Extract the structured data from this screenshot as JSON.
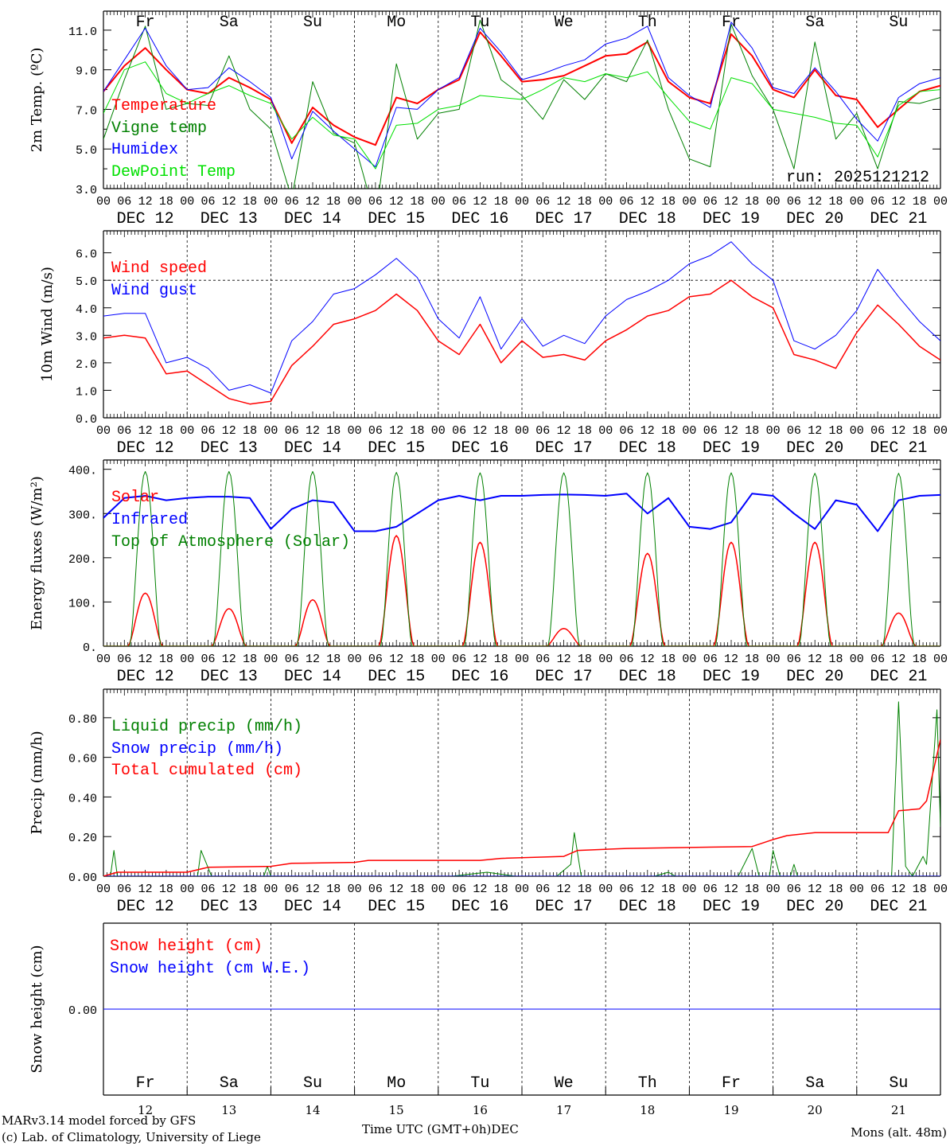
{
  "footer": {
    "model_line": "MARv3.14 model forced by GFS",
    "copyright_line": "(c) Lab. of Climatology, University of Liege",
    "time_axis_label": "Time UTC (GMT+0h)DEC",
    "station": "Mons (alt. 48m)"
  },
  "days": {
    "weekdays": [
      "Fr",
      "Sa",
      "Su",
      "Mo",
      "Tu",
      "We",
      "Th",
      "Fr",
      "Sa",
      "Su"
    ],
    "weekend": [
      false,
      true,
      true,
      false,
      false,
      false,
      false,
      false,
      true,
      true
    ],
    "dates": [
      "DEC 12",
      "DEC 13",
      "DEC 14",
      "DEC 15",
      "DEC 16",
      "DEC 17",
      "DEC 18",
      "DEC 19",
      "DEC 20",
      "DEC 21"
    ],
    "day_numbers": [
      "12",
      "13",
      "14",
      "15",
      "16",
      "17",
      "18",
      "19",
      "20",
      "21"
    ],
    "hour_labels": [
      "00",
      "06",
      "12",
      "18"
    ]
  },
  "colors": {
    "red": "#ff0000",
    "blue": "#0000ff",
    "green": "#008000",
    "lime": "#00e000",
    "black": "#000000"
  },
  "chart_data": [
    {
      "type": "line",
      "ylabel": "2m Temp. (ºC)",
      "yticks": [
        "3.0",
        "5.0",
        "7.0",
        "9.0",
        "11.0"
      ],
      "ylim": [
        3.0,
        11.96
      ],
      "x_hours_step": 6,
      "run_label": "run: 2025121212",
      "series": [
        {
          "name": "Temperature",
          "color": "#ff0000",
          "width": 2,
          "values": [
            7.9,
            9.2,
            10.1,
            9.0,
            8.0,
            7.8,
            8.6,
            8.1,
            7.5,
            5.3,
            7.1,
            6.2,
            5.6,
            5.2,
            7.6,
            7.3,
            8.0,
            8.5,
            10.9,
            9.7,
            8.4,
            8.5,
            8.7,
            9.2,
            9.7,
            9.8,
            10.4,
            8.4,
            7.6,
            7.3,
            10.8,
            9.7,
            8.0,
            7.6,
            9.0,
            7.7,
            7.5,
            6.1,
            7.0,
            7.9,
            8.2
          ]
        },
        {
          "name": "Vigne temp",
          "color": "#008000",
          "width": 1,
          "values": [
            5.5,
            8.5,
            11.2,
            7.0,
            7.3,
            7.2,
            9.7,
            7.0,
            6.0,
            2.5,
            8.4,
            5.8,
            5.3,
            1.5,
            9.3,
            5.5,
            6.8,
            7.0,
            11.5,
            8.5,
            7.7,
            6.5,
            8.5,
            7.5,
            8.8,
            8.4,
            10.5,
            7.0,
            4.5,
            4.1,
            11.3,
            8.7,
            7.0,
            4.0,
            10.4,
            5.5,
            6.8,
            4.0,
            7.4,
            7.3,
            7.6
          ]
        },
        {
          "name": "Humidex",
          "color": "#0000ff",
          "width": 1,
          "values": [
            7.9,
            9.5,
            11.1,
            9.2,
            8.0,
            8.1,
            9.1,
            8.4,
            7.6,
            4.5,
            6.9,
            5.9,
            5.0,
            4.1,
            7.1,
            7.0,
            8.0,
            8.6,
            11.1,
            9.9,
            8.5,
            8.8,
            9.2,
            9.5,
            10.3,
            10.6,
            11.2,
            8.6,
            7.7,
            7.1,
            11.4,
            10.1,
            8.1,
            7.8,
            9.1,
            7.9,
            6.5,
            5.4,
            7.6,
            8.3,
            8.6
          ]
        },
        {
          "name": "DewPoint Temp",
          "color": "#00e000",
          "width": 1,
          "values": [
            6.8,
            9.0,
            9.4,
            7.8,
            7.3,
            7.8,
            8.2,
            7.7,
            7.3,
            5.5,
            6.6,
            5.7,
            5.5,
            4.0,
            6.2,
            6.3,
            7.0,
            7.2,
            7.7,
            7.6,
            7.5,
            8.0,
            8.6,
            8.4,
            8.8,
            8.6,
            8.9,
            7.6,
            6.4,
            6.0,
            8.6,
            8.3,
            7.0,
            6.8,
            6.6,
            6.3,
            6.2,
            4.6,
            7.2,
            7.9,
            8.0
          ]
        }
      ]
    },
    {
      "type": "line",
      "ylabel": "10m Wind (m/s)",
      "yticks": [
        "0.0",
        "1.0",
        "2.0",
        "3.0",
        "4.0",
        "5.0",
        "6.0"
      ],
      "ylim": [
        0,
        6.8
      ],
      "reference_line": 5.0,
      "x_hours_step": 6,
      "series": [
        {
          "name": "Wind speed",
          "color": "#ff0000",
          "width": 1.5,
          "values": [
            2.9,
            3.0,
            2.9,
            1.6,
            1.7,
            1.2,
            0.7,
            0.5,
            0.6,
            1.9,
            2.6,
            3.4,
            3.6,
            3.9,
            4.5,
            3.9,
            2.8,
            2.3,
            3.4,
            2.0,
            2.8,
            2.2,
            2.3,
            2.1,
            2.8,
            3.2,
            3.7,
            3.9,
            4.4,
            4.5,
            5.0,
            4.4,
            4.0,
            2.3,
            2.1,
            1.8,
            3.1,
            4.1,
            3.4,
            2.6,
            2.1
          ]
        },
        {
          "name": "Wind gust",
          "color": "#0000ff",
          "width": 1,
          "values": [
            3.7,
            3.8,
            3.8,
            2.0,
            2.2,
            1.8,
            1.0,
            1.2,
            0.9,
            2.8,
            3.5,
            4.5,
            4.7,
            5.2,
            5.8,
            5.1,
            3.6,
            2.9,
            4.4,
            2.5,
            3.6,
            2.6,
            3.0,
            2.7,
            3.7,
            4.3,
            4.6,
            5.0,
            5.6,
            5.9,
            6.4,
            5.6,
            5.0,
            2.8,
            2.5,
            3.0,
            3.9,
            5.4,
            4.4,
            3.5,
            2.8
          ]
        }
      ]
    },
    {
      "type": "line",
      "ylabel": "Energy fluxes (W/m²)",
      "yticks": [
        "0.",
        "100.",
        "200.",
        "300.",
        "400."
      ],
      "ylim": [
        0,
        421
      ],
      "series": [
        {
          "name": "Solar",
          "color": "#ff0000",
          "width": 1.5,
          "daily_peak": [
            120,
            85,
            105,
            250,
            235,
            40,
            210,
            235,
            235,
            75
          ],
          "daylight_hours": [
            7,
            17
          ]
        },
        {
          "name": "Infrared",
          "color": "#0000ff",
          "width": 2,
          "x_hours_step": 6,
          "values": [
            290,
            335,
            340,
            330,
            335,
            338,
            338,
            335,
            265,
            310,
            330,
            325,
            260,
            260,
            270,
            300,
            330,
            340,
            330,
            340,
            340,
            342,
            343,
            342,
            340,
            345,
            300,
            335,
            270,
            265,
            280,
            345,
            340,
            300,
            265,
            330,
            320,
            260,
            330,
            340,
            342
          ]
        },
        {
          "name": "Top of Atmosphere (Solar)",
          "color": "#008000",
          "width": 1,
          "daily_peak": [
            395,
            395,
            395,
            393,
            392,
            392,
            392,
            392,
            391,
            391
          ],
          "daylight_hours": [
            7.5,
            16.5
          ]
        }
      ]
    },
    {
      "type": "line",
      "ylabel": "Precip (mm/h)",
      "yticks": [
        "0.00",
        "0.20",
        "0.40",
        "0.60",
        "0.80"
      ],
      "ylim": [
        0,
        0.944
      ],
      "series": [
        {
          "name": "Liquid precip (mm/h)",
          "color": "#008000",
          "width": 1,
          "points": [
            [
              0,
              0
            ],
            [
              2,
              0
            ],
            [
              3,
              0.13
            ],
            [
              4,
              0
            ],
            [
              27,
              0
            ],
            [
              28,
              0.13
            ],
            [
              31,
              0
            ],
            [
              46,
              0
            ],
            [
              47,
              0.05
            ],
            [
              48,
              0
            ],
            [
              100,
              0
            ],
            [
              110,
              0.02
            ],
            [
              118,
              0
            ],
            [
              130,
              0
            ],
            [
              134,
              0.06
            ],
            [
              135,
              0.22
            ],
            [
              137,
              0
            ],
            [
              158,
              0
            ],
            [
              162,
              0.02
            ],
            [
              164,
              0
            ],
            [
              182,
              0
            ],
            [
              186,
              0.14
            ],
            [
              188,
              0
            ],
            [
              191,
              0
            ],
            [
              192,
              0.13
            ],
            [
              194,
              0
            ],
            [
              197,
              0
            ],
            [
              198,
              0.06
            ],
            [
              199,
              0
            ],
            [
              226,
              0
            ],
            [
              228,
              0.88
            ],
            [
              230,
              0.05
            ],
            [
              232,
              0
            ],
            [
              235,
              0.1
            ],
            [
              236,
              0.06
            ],
            [
              239,
              0.84
            ],
            [
              240,
              0.25
            ]
          ]
        },
        {
          "name": "Snow precip (mm/h)",
          "color": "#0000ff",
          "width": 1,
          "points": [
            [
              0,
              0
            ],
            [
              240,
              0
            ]
          ]
        },
        {
          "name": "Total cumulated (cm)",
          "color": "#ff0000",
          "width": 1.5,
          "points": [
            [
              0,
              0
            ],
            [
              4,
              0.02
            ],
            [
              24,
              0.02
            ],
            [
              30,
              0.045
            ],
            [
              48,
              0.05
            ],
            [
              54,
              0.065
            ],
            [
              72,
              0.07
            ],
            [
              76,
              0.08
            ],
            [
              108,
              0.08
            ],
            [
              114,
              0.09
            ],
            [
              132,
              0.1
            ],
            [
              136,
              0.13
            ],
            [
              150,
              0.14
            ],
            [
              168,
              0.145
            ],
            [
              186,
              0.15
            ],
            [
              192,
              0.185
            ],
            [
              196,
              0.205
            ],
            [
              204,
              0.22
            ],
            [
              225,
              0.22
            ],
            [
              228,
              0.33
            ],
            [
              234,
              0.34
            ],
            [
              236,
              0.38
            ],
            [
              240,
              0.69
            ]
          ]
        }
      ]
    },
    {
      "type": "line",
      "ylabel": "Snow height (cm)",
      "yticks": [
        "0.00"
      ],
      "ylim": [
        -1,
        1
      ],
      "series": [
        {
          "name": "Snow height (cm)",
          "color": "#ff0000",
          "width": 1,
          "points": [
            [
              0,
              0
            ],
            [
              240,
              0
            ]
          ]
        },
        {
          "name": "Snow height (cm W.E.)",
          "color": "#0000ff",
          "width": 1,
          "points": [
            [
              0,
              0
            ],
            [
              240,
              0
            ]
          ]
        }
      ]
    }
  ]
}
